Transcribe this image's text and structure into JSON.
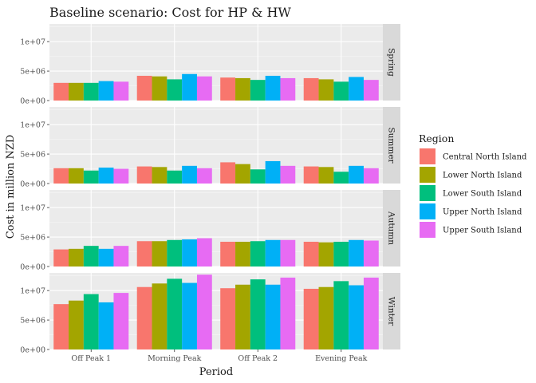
{
  "chart_data": {
    "type": "bar",
    "layout": "faceted-rows",
    "title": "Baseline scenario: Cost for HP & HW",
    "xlabel": "Period",
    "ylabel": "Cost in million NZD",
    "categories": [
      "Off Peak 1",
      "Morning Peak",
      "Off Peak 2",
      "Evening Peak"
    ],
    "ylim": [
      0,
      13000000
    ],
    "yticks": [
      0,
      5000000,
      10000000
    ],
    "ytick_labels": [
      "0e+00",
      "5e+06",
      "1e+07"
    ],
    "grid": true,
    "legend": {
      "title": "Region",
      "position": "right",
      "entries": [
        {
          "name": "Central North Island",
          "color": "#F8766D"
        },
        {
          "name": "Lower North Island",
          "color": "#A3A500"
        },
        {
          "name": "Lower South Island",
          "color": "#00BF7D"
        },
        {
          "name": "Upper North Island",
          "color": "#00B0F6"
        },
        {
          "name": "Upper South Island",
          "color": "#E76BF3"
        }
      ]
    },
    "facets": [
      {
        "label": "Spring",
        "series": [
          {
            "name": "Central North Island",
            "values": [
              3000000,
              4200000,
              3900000,
              3800000
            ]
          },
          {
            "name": "Lower North Island",
            "values": [
              3000000,
              4100000,
              3800000,
              3600000
            ]
          },
          {
            "name": "Lower South Island",
            "values": [
              3000000,
              3600000,
              3500000,
              3200000
            ]
          },
          {
            "name": "Upper North Island",
            "values": [
              3300000,
              4500000,
              4200000,
              4000000
            ]
          },
          {
            "name": "Upper South Island",
            "values": [
              3200000,
              4100000,
              3800000,
              3500000
            ]
          }
        ]
      },
      {
        "label": "Summer",
        "series": [
          {
            "name": "Central North Island",
            "values": [
              2600000,
              2900000,
              3600000,
              2900000
            ]
          },
          {
            "name": "Lower North Island",
            "values": [
              2600000,
              2800000,
              3300000,
              2800000
            ]
          },
          {
            "name": "Lower South Island",
            "values": [
              2200000,
              2200000,
              2400000,
              2000000
            ]
          },
          {
            "name": "Upper North Island",
            "values": [
              2700000,
              3000000,
              3800000,
              3000000
            ]
          },
          {
            "name": "Upper South Island",
            "values": [
              2500000,
              2600000,
              3000000,
              2600000
            ]
          }
        ]
      },
      {
        "label": "Autumn",
        "series": [
          {
            "name": "Central North Island",
            "values": [
              2900000,
              4300000,
              4200000,
              4200000
            ]
          },
          {
            "name": "Lower North Island",
            "values": [
              3000000,
              4300000,
              4200000,
              4100000
            ]
          },
          {
            "name": "Lower South Island",
            "values": [
              3500000,
              4500000,
              4300000,
              4200000
            ]
          },
          {
            "name": "Upper North Island",
            "values": [
              3000000,
              4600000,
              4500000,
              4500000
            ]
          },
          {
            "name": "Upper South Island",
            "values": [
              3500000,
              4800000,
              4500000,
              4400000
            ]
          }
        ]
      },
      {
        "label": "Winter",
        "series": [
          {
            "name": "Central North Island",
            "values": [
              7700000,
              10600000,
              10400000,
              10300000
            ]
          },
          {
            "name": "Lower North Island",
            "values": [
              8300000,
              11200000,
              11000000,
              10600000
            ]
          },
          {
            "name": "Lower South Island",
            "values": [
              9400000,
              12000000,
              11900000,
              11600000
            ]
          },
          {
            "name": "Upper North Island",
            "values": [
              8000000,
              11300000,
              11000000,
              10900000
            ]
          },
          {
            "name": "Upper South Island",
            "values": [
              9600000,
              12700000,
              12200000,
              12200000
            ]
          }
        ]
      }
    ]
  }
}
